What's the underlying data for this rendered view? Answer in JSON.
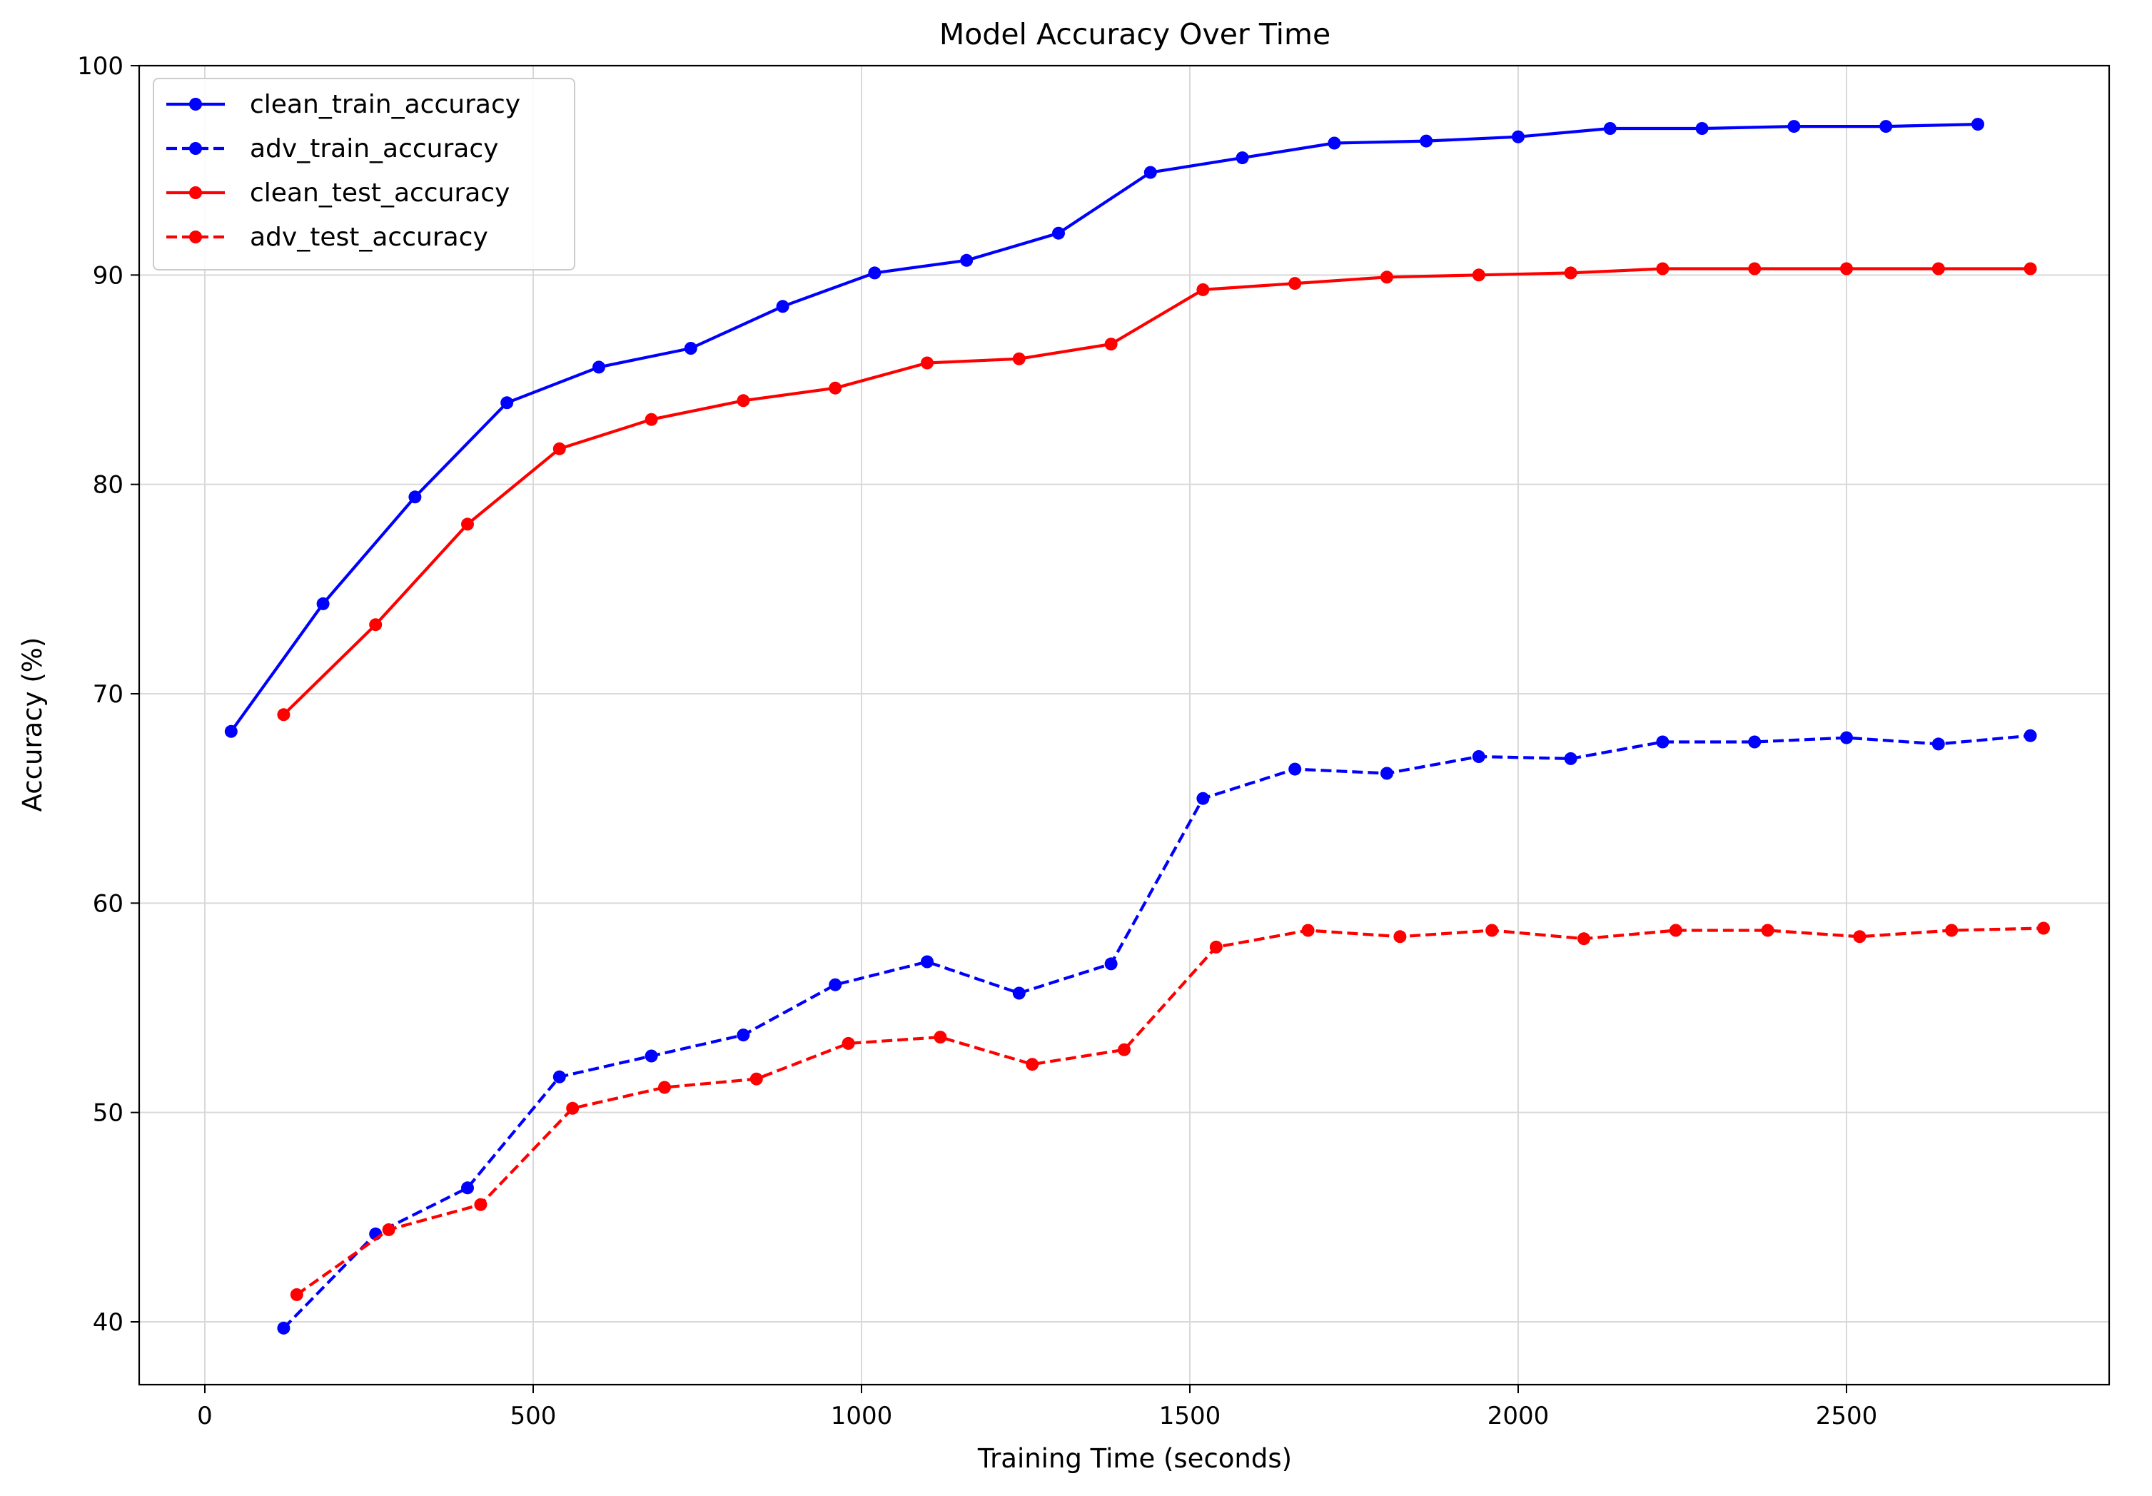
{
  "chart_data": {
    "type": "line",
    "title": "Model Accuracy Over Time",
    "xlabel": "Training Time (seconds)",
    "ylabel": "Accuracy (%)",
    "xlim": [
      -100,
      2900
    ],
    "ylim": [
      37,
      100
    ],
    "xticks": [
      0,
      500,
      1000,
      1500,
      2000,
      2500
    ],
    "yticks": [
      40,
      50,
      60,
      70,
      80,
      90,
      100
    ],
    "grid": true,
    "legend_position": "top-left",
    "series": [
      {
        "name": "clean_train_accuracy",
        "color": "#0000ff",
        "dash": "solid",
        "points": [
          [
            40,
            68.2
          ],
          [
            180,
            74.3
          ],
          [
            320,
            79.4
          ],
          [
            460,
            83.9
          ],
          [
            600,
            85.6
          ],
          [
            740,
            86.5
          ],
          [
            880,
            88.5
          ],
          [
            1020,
            90.1
          ],
          [
            1160,
            90.7
          ],
          [
            1300,
            92.0
          ],
          [
            1440,
            94.9
          ],
          [
            1580,
            95.6
          ],
          [
            1720,
            96.3
          ],
          [
            1860,
            96.4
          ],
          [
            2000,
            96.6
          ],
          [
            2140,
            97.0
          ],
          [
            2280,
            97.0
          ],
          [
            2420,
            97.1
          ],
          [
            2560,
            97.1
          ],
          [
            2700,
            97.2
          ]
        ]
      },
      {
        "name": "adv_train_accuracy",
        "color": "#0000ff",
        "dash": "dashed",
        "points": [
          [
            120,
            39.7
          ],
          [
            260,
            44.2
          ],
          [
            400,
            46.4
          ],
          [
            540,
            51.7
          ],
          [
            680,
            52.7
          ],
          [
            820,
            53.7
          ],
          [
            960,
            56.1
          ],
          [
            1100,
            57.2
          ],
          [
            1240,
            55.7
          ],
          [
            1380,
            57.1
          ],
          [
            1520,
            65.0
          ],
          [
            1660,
            66.4
          ],
          [
            1800,
            66.2
          ],
          [
            1940,
            67.0
          ],
          [
            2080,
            66.9
          ],
          [
            2220,
            67.7
          ],
          [
            2360,
            67.7
          ],
          [
            2500,
            67.9
          ],
          [
            2640,
            67.6
          ],
          [
            2780,
            68.0
          ]
        ]
      },
      {
        "name": "clean_test_accuracy",
        "color": "#ff0000",
        "dash": "solid",
        "points": [
          [
            120,
            69.0
          ],
          [
            260,
            73.3
          ],
          [
            400,
            78.1
          ],
          [
            540,
            81.7
          ],
          [
            680,
            83.1
          ],
          [
            820,
            84.0
          ],
          [
            960,
            84.6
          ],
          [
            1100,
            85.8
          ],
          [
            1240,
            86.0
          ],
          [
            1380,
            86.7
          ],
          [
            1520,
            89.3
          ],
          [
            1660,
            89.6
          ],
          [
            1800,
            89.9
          ],
          [
            1940,
            90.0
          ],
          [
            2080,
            90.1
          ],
          [
            2220,
            90.3
          ],
          [
            2360,
            90.3
          ],
          [
            2500,
            90.3
          ],
          [
            2640,
            90.3
          ],
          [
            2780,
            90.3
          ]
        ]
      },
      {
        "name": "adv_test_accuracy",
        "color": "#ff0000",
        "dash": "dashed",
        "points": [
          [
            140,
            41.3
          ],
          [
            280,
            44.4
          ],
          [
            420,
            45.6
          ],
          [
            560,
            50.2
          ],
          [
            700,
            51.2
          ],
          [
            840,
            51.6
          ],
          [
            980,
            53.3
          ],
          [
            1120,
            53.6
          ],
          [
            1260,
            52.3
          ],
          [
            1400,
            53.0
          ],
          [
            1540,
            57.9
          ],
          [
            1680,
            58.7
          ],
          [
            1820,
            58.4
          ],
          [
            1960,
            58.7
          ],
          [
            2100,
            58.3
          ],
          [
            2240,
            58.7
          ],
          [
            2380,
            58.7
          ],
          [
            2520,
            58.4
          ],
          [
            2660,
            58.7
          ],
          [
            2800,
            58.8
          ]
        ]
      }
    ]
  }
}
